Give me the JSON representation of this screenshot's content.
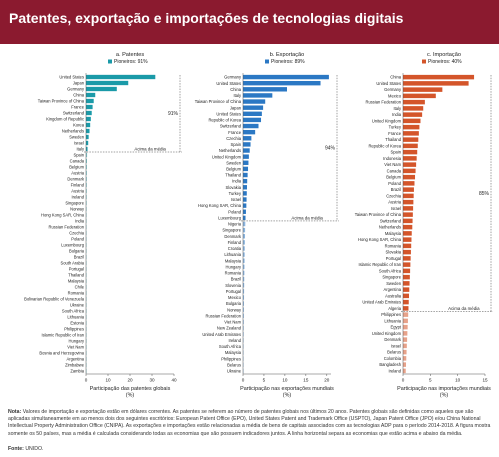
{
  "header": {
    "title": "Patentes, exportação e importações de tecnologias digitais"
  },
  "note": {
    "label": "Nota:",
    "text": "Valores de importação e exportação estão em dólares correntes. As patentes se referem ao número de patentes globais nos últimos 20 anos. Patentes globais são definidas como aqueles que são aplicadas simultaneamente em ao menos dois dos seguintes escritórios: European Patent Office (EPO), United States Patent and Trademark Office (USPTO), Japan Patent Office (JPO) e/ou China National Intellectual Property Administration Office (CNIPA). As exportações e importações estão relacionadas a média de bens de capitais associados com as tecnologias ADP para o período 2014-2018. A figura mostra somente os 50 países, mas a média é calculada considerando todas as economias que são possuem indicadores juntos. A linha horizontal separa as economias que estão acima e abaixo da média."
  },
  "source": {
    "label": "Fonte:",
    "text": "UNIDO."
  },
  "chart_data": [
    {
      "type": "bar",
      "panel_label": "a. Patentes",
      "legend": "Pioneiros: 91%",
      "color": "#1a9aa8",
      "xlabel": "Participação das patentes globais (%)",
      "xticks": [
        0,
        10,
        20,
        30,
        40
      ],
      "xlim": [
        0,
        40
      ],
      "cumulative_label": "91%",
      "average_label": "Acima da média",
      "average_after_index": 12,
      "categories": [
        "United States",
        "Japan",
        "Germany",
        "China",
        "Taiwan Province of China",
        "France",
        "Switzerland",
        "Kingdom of Republic",
        "Korea",
        "Netherlands",
        "Sweden",
        "Israel",
        "Italy",
        "Spain",
        "Canada",
        "Belgium",
        "Austria",
        "Denmark",
        "Finland",
        "Austria",
        "Ireland",
        "Singapore",
        "Norway",
        "Hong Kong SAR, China",
        "India",
        "Russian Federation",
        "Czechia",
        "Poland",
        "Luxembourg",
        "Bulgaria",
        "Brazil",
        "South Arabia",
        "Portugal",
        "Thailand",
        "Malaysia",
        "Chile",
        "Romania",
        "Bolivarian Republic of Venezuela",
        "Ukraine",
        "South Africa",
        "Lithuania",
        "Estonia",
        "Philippines",
        "Islamic Republic of Iran",
        "Hungary",
        "Viet Nam",
        "Bosnia and Herzegovina",
        "Argentina",
        "Zimbabwe",
        "Zambia"
      ],
      "values": [
        31.5,
        19.2,
        14.0,
        4.2,
        3.5,
        3.0,
        2.6,
        2.2,
        1.9,
        1.6,
        1.2,
        1.0,
        0.7,
        0.5,
        0.45,
        0.4,
        0.38,
        0.36,
        0.34,
        0.32,
        0.3,
        0.28,
        0.26,
        0.24,
        0.22,
        0.2,
        0.18,
        0.16,
        0.15,
        0.14,
        0.13,
        0.12,
        0.11,
        0.1,
        0.1,
        0.09,
        0.08,
        0.08,
        0.07,
        0.07,
        0.06,
        0.06,
        0.05,
        0.05,
        0.05,
        0.04,
        0.04,
        0.03,
        0.03,
        0.02
      ]
    },
    {
      "type": "bar",
      "panel_label": "b. Exportação",
      "legend": "Pioneiros: 89%",
      "color": "#2b78c4",
      "xlabel": "Participação nas exportações mundiais (%)",
      "xticks": [
        0,
        5,
        10,
        15,
        20
      ],
      "xlim": [
        0,
        21
      ],
      "cumulative_label": "94%",
      "average_label": "Acima da média",
      "average_after_index": 23,
      "categories": [
        "Germany",
        "United States",
        "China",
        "Italy",
        "Taiwan Province of China",
        "Japan",
        "United States",
        "Republic of Korea",
        "Switzerland",
        "France",
        "Czechia",
        "Spain",
        "Netherlands",
        "United Kingdom",
        "Sweden",
        "Belgium",
        "Thailand",
        "India",
        "Slovakia",
        "Turkey",
        "Israel",
        "Hong Kong SAR, China",
        "Poland",
        "Luxembourg",
        "Nigeria",
        "Singapore",
        "Denmark",
        "Finland",
        "Croatia",
        "Lithuania",
        "Malaysia",
        "Hungary",
        "Romania",
        "Brazil",
        "Slovenia",
        "Portugal",
        "Mexico",
        "Bulgaria",
        "Norway",
        "Russian Federation",
        "Viet Nam",
        "New Zealand",
        "United Arab Emirates",
        "Ireland",
        "South Africa",
        "Malaysia",
        "Philippines",
        "Belarus",
        "Ukraine"
      ],
      "values": [
        20.5,
        18.5,
        10.5,
        7.0,
        5.3,
        4.8,
        4.5,
        4.3,
        3.7,
        2.9,
        2.0,
        1.8,
        1.6,
        1.4,
        1.3,
        1.2,
        1.1,
        1.0,
        0.95,
        0.9,
        0.85,
        0.8,
        0.7,
        0.6,
        0.55,
        0.5,
        0.48,
        0.45,
        0.42,
        0.4,
        0.38,
        0.35,
        0.33,
        0.3,
        0.28,
        0.26,
        0.25,
        0.23,
        0.21,
        0.2,
        0.18,
        0.16,
        0.15,
        0.13,
        0.12,
        0.1,
        0.09,
        0.07,
        0.05
      ]
    },
    {
      "type": "bar",
      "panel_label": "c. Importação",
      "legend": "Pioneiros: 40%",
      "color": "#d4552a",
      "xlabel": "Participação nas importações mundiais (%)",
      "xticks": [
        0,
        5,
        10,
        15
      ],
      "xlim": [
        0,
        15
      ],
      "cumulative_label": "85%",
      "average_label": "Acima da média",
      "average_after_index": 37,
      "categories": [
        "China",
        "United States",
        "Germany",
        "Mexico",
        "Russian Federation",
        "Italy",
        "India",
        "United Kingdom",
        "Turkey",
        "France",
        "Thailand",
        "Republic of Korea",
        "Spain",
        "Indonesia",
        "Viet Nam",
        "Canada",
        "Belgium",
        "Poland",
        "Brazil",
        "Czechia",
        "Austria",
        "Israel",
        "Taiwan Province of China",
        "Switzerland",
        "Netherlands",
        "Malaysia",
        "Hong Kong SAR, China",
        "Romania",
        "Slovakia",
        "Portugal",
        "Islamic Republic of Iran",
        "South Africa",
        "Singapore",
        "Sweden",
        "Argentina",
        "Australia",
        "United Arab Emirates",
        "Algeria",
        "Philippines",
        "Lithuania",
        "Egypt",
        "United Kingdom",
        "Denmark",
        "Israel",
        "Belarus",
        "Colombia",
        "Bangladesh",
        "Ireland"
      ],
      "values": [
        13.0,
        12.0,
        7.2,
        6.0,
        4.0,
        3.7,
        3.5,
        3.2,
        3.0,
        2.9,
        2.8,
        2.7,
        2.6,
        2.5,
        2.4,
        2.3,
        2.2,
        2.1,
        2.0,
        1.95,
        1.9,
        1.85,
        1.8,
        1.75,
        1.7,
        1.6,
        1.55,
        1.5,
        1.45,
        1.4,
        1.35,
        1.3,
        1.25,
        1.2,
        1.15,
        1.1,
        1.05,
        1.0,
        0.95,
        0.9,
        0.85,
        0.8,
        0.75,
        0.7,
        0.65,
        0.6,
        0.55,
        0.5
      ]
    }
  ]
}
